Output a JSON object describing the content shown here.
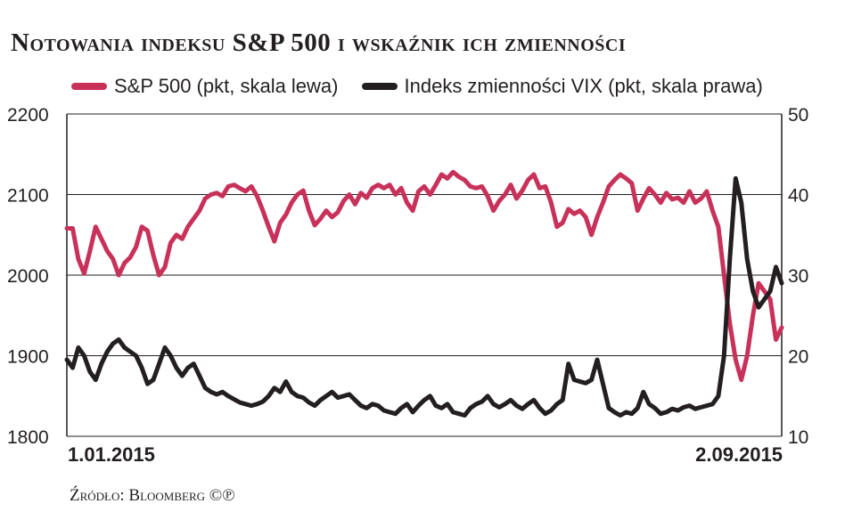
{
  "header": {
    "title": "Notowania indeksu S&P 500 i wskaźnik ich zmienności"
  },
  "footer": {
    "source": "Źródło: Bloomberg ©℗"
  },
  "chart_data": {
    "type": "line",
    "title": "Notowania indeksu S&P 500 i wskaźnik ich zmienności",
    "grid": true,
    "legend_position": "top",
    "x_range": [
      "1.01.2015",
      "2.09.2015"
    ],
    "x_tick_labels": [
      "1.01.2015",
      "2.09.2015"
    ],
    "y_left": {
      "ylim": [
        1800,
        2200
      ],
      "ticks": [
        "2200",
        "2100",
        "2000",
        "1900",
        "1800"
      ]
    },
    "y_right": {
      "ylim": [
        10,
        50
      ],
      "ticks": [
        "50",
        "40",
        "30",
        "20",
        "10"
      ]
    },
    "series": [
      {
        "name": "S&P 500 (pkt, skala lewa)",
        "axis": "left",
        "color": "#c8325a",
        "values": [
          2058,
          2058,
          2020,
          2002,
          2030,
          2060,
          2045,
          2030,
          2020,
          2000,
          2015,
          2022,
          2035,
          2060,
          2055,
          2025,
          2000,
          2010,
          2040,
          2050,
          2045,
          2060,
          2070,
          2080,
          2095,
          2100,
          2102,
          2098,
          2110,
          2112,
          2108,
          2104,
          2110,
          2098,
          2080,
          2060,
          2042,
          2065,
          2075,
          2090,
          2100,
          2105,
          2080,
          2062,
          2070,
          2080,
          2072,
          2078,
          2092,
          2100,
          2088,
          2102,
          2096,
          2108,
          2112,
          2108,
          2112,
          2100,
          2108,
          2090,
          2080,
          2104,
          2110,
          2100,
          2112,
          2125,
          2120,
          2128,
          2122,
          2118,
          2110,
          2108,
          2110,
          2098,
          2080,
          2092,
          2100,
          2112,
          2095,
          2105,
          2118,
          2125,
          2108,
          2110,
          2090,
          2060,
          2065,
          2082,
          2076,
          2080,
          2072,
          2050,
          2072,
          2090,
          2110,
          2118,
          2125,
          2120,
          2114,
          2080,
          2095,
          2108,
          2100,
          2090,
          2102,
          2094,
          2096,
          2090,
          2104,
          2090,
          2095,
          2104,
          2080,
          2060,
          2000,
          1940,
          1895,
          1870,
          1900,
          1950,
          1990,
          1980,
          1970,
          1920,
          1935
        ]
      },
      {
        "name": "Indeks zmienności VIX (pkt, skala prawa)",
        "axis": "right",
        "color": "#231f20",
        "values": [
          19.5,
          18.5,
          21,
          20,
          18,
          17,
          19,
          20.5,
          21.5,
          22,
          21,
          20.5,
          20,
          18.5,
          16.5,
          17,
          19,
          21,
          20,
          18.5,
          17.5,
          18.5,
          19,
          17.5,
          16,
          15.5,
          15.2,
          15.5,
          15,
          14.6,
          14.2,
          14,
          13.8,
          14,
          14.3,
          15,
          16,
          15.5,
          16.8,
          15.5,
          15,
          14.8,
          14.2,
          13.8,
          14.5,
          15,
          15.5,
          14.8,
          15,
          15.2,
          14.5,
          13.8,
          13.5,
          14,
          13.8,
          13.2,
          13,
          12.8,
          13.5,
          14,
          13,
          13.8,
          14.5,
          15,
          13.8,
          13.5,
          14,
          13,
          12.8,
          12.6,
          13.5,
          14,
          14.3,
          15,
          14,
          13.6,
          14,
          14.5,
          13.8,
          13.4,
          14,
          14.5,
          13.5,
          12.8,
          13.2,
          14,
          14.5,
          19,
          17,
          16.8,
          16.6,
          17,
          19.5,
          16.5,
          13.5,
          13,
          12.6,
          13,
          12.8,
          13.5,
          15.5,
          14,
          13.5,
          12.8,
          13,
          13.4,
          13.2,
          13.6,
          13.8,
          13.4,
          13.6,
          13.8,
          14,
          15,
          20,
          32,
          42,
          39,
          32,
          28,
          26,
          27,
          28,
          31,
          29
        ]
      }
    ]
  }
}
